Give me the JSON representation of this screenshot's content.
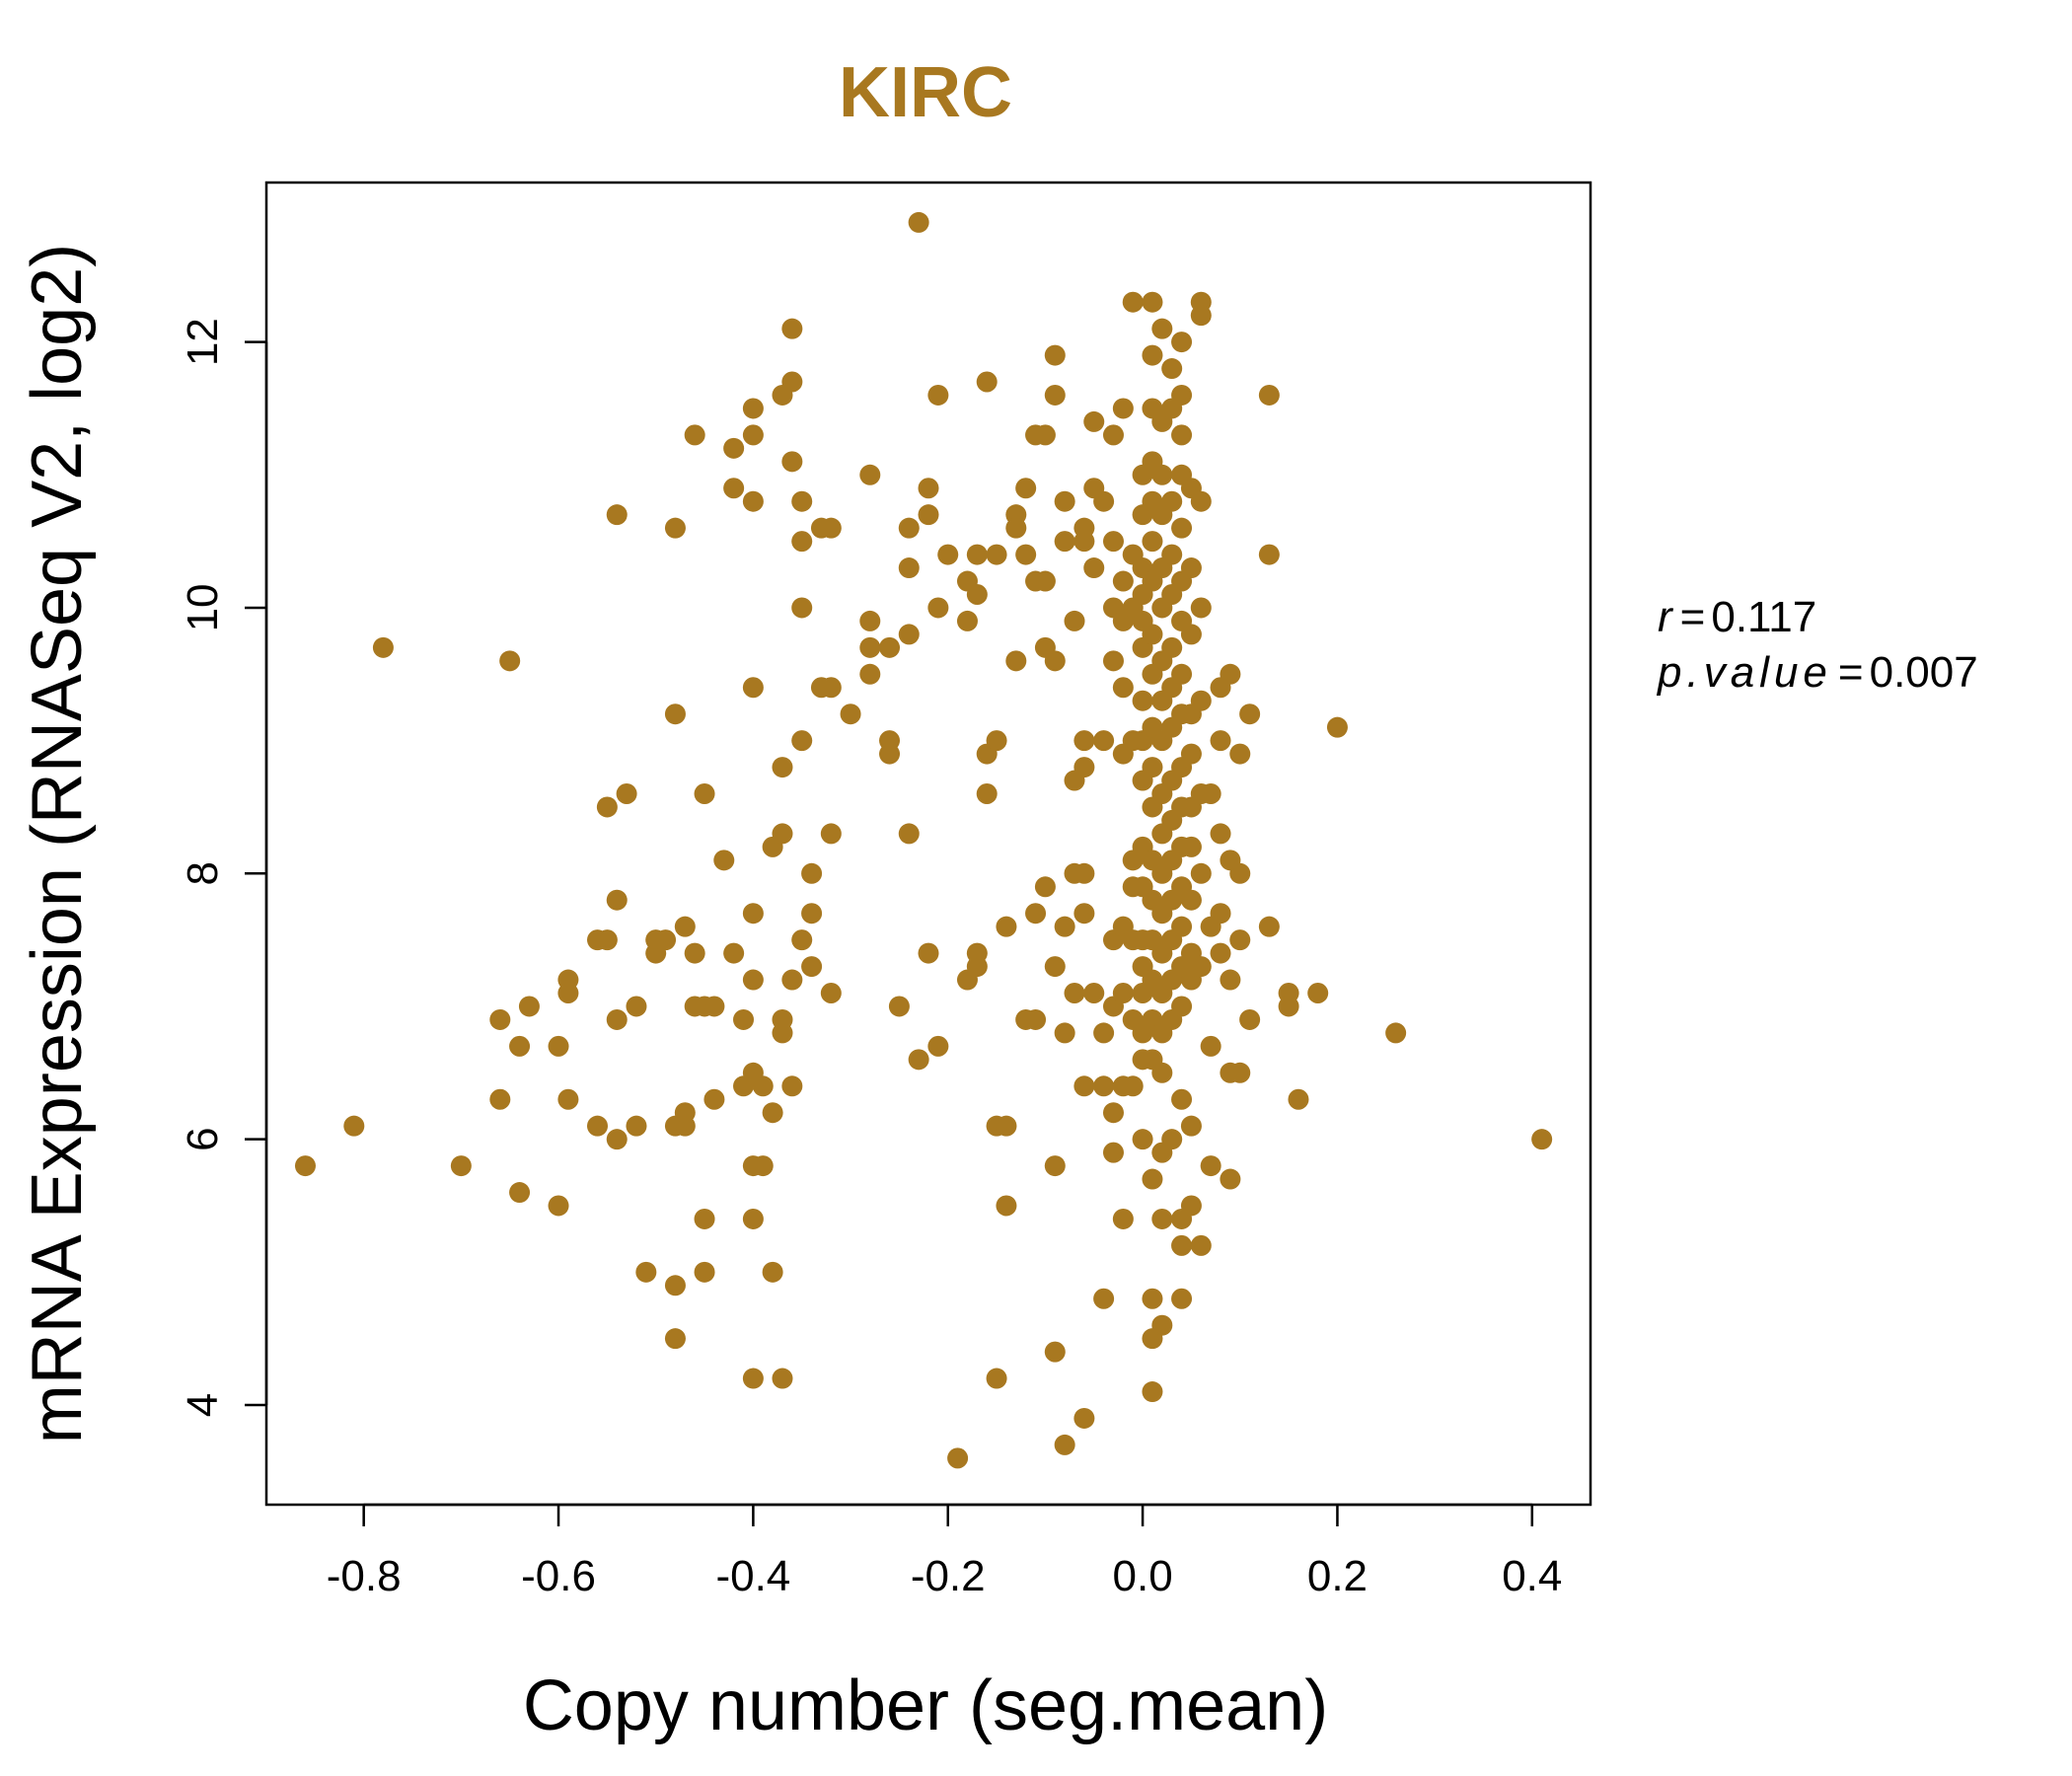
{
  "chart_data": {
    "type": "scatter",
    "title": "KIRC",
    "xlabel": "Copy number (seg.mean)",
    "ylabel": "mRNA Expression (RNASeq V2, log2)",
    "xlim": [
      -0.9,
      0.46
    ],
    "ylim": [
      3.25,
      13.2
    ],
    "x_ticks": [
      -0.8,
      -0.6,
      -0.4,
      -0.2,
      0.0,
      0.2,
      0.4
    ],
    "x_tick_labels": [
      "-0.8",
      "-0.6",
      "-0.4",
      "-0.2",
      "0.0",
      "0.2",
      "0.4"
    ],
    "y_ticks": [
      4,
      6,
      8,
      10,
      12
    ],
    "y_tick_labels": [
      "4",
      "6",
      "8",
      "10",
      "12"
    ],
    "point_color": "#A87820",
    "title_color": "#A87820",
    "stats": {
      "r_symbol": "r",
      "r_value": "0.117",
      "p_symbol": "p.value",
      "p_value": "0.007",
      "equals": "="
    },
    "points": [
      [
        -0.86,
        5.8
      ],
      [
        -0.81,
        6.1
      ],
      [
        -0.78,
        9.7
      ],
      [
        -0.7,
        5.8
      ],
      [
        -0.66,
        6.9
      ],
      [
        -0.66,
        6.3
      ],
      [
        -0.65,
        9.6
      ],
      [
        -0.64,
        6.7
      ],
      [
        -0.64,
        5.6
      ],
      [
        -0.63,
        7.0
      ],
      [
        -0.6,
        6.7
      ],
      [
        -0.6,
        5.5
      ],
      [
        -0.59,
        7.2
      ],
      [
        -0.59,
        7.1
      ],
      [
        -0.59,
        6.3
      ],
      [
        -0.56,
        7.5
      ],
      [
        -0.56,
        6.1
      ],
      [
        -0.55,
        8.5
      ],
      [
        -0.55,
        7.5
      ],
      [
        -0.54,
        6.9
      ],
      [
        -0.54,
        6.0
      ],
      [
        -0.54,
        10.7
      ],
      [
        -0.54,
        7.8
      ],
      [
        -0.53,
        8.6
      ],
      [
        -0.52,
        7.0
      ],
      [
        -0.52,
        6.1
      ],
      [
        -0.51,
        5.0
      ],
      [
        -0.5,
        7.4
      ],
      [
        -0.5,
        7.5
      ],
      [
        -0.49,
        7.5
      ],
      [
        -0.48,
        10.6
      ],
      [
        -0.48,
        9.2
      ],
      [
        -0.48,
        6.1
      ],
      [
        -0.48,
        4.9
      ],
      [
        -0.48,
        4.5
      ],
      [
        -0.47,
        7.6
      ],
      [
        -0.47,
        6.1
      ],
      [
        -0.47,
        6.2
      ],
      [
        -0.46,
        11.3
      ],
      [
        -0.46,
        7.4
      ],
      [
        -0.46,
        7.0
      ],
      [
        -0.45,
        8.6
      ],
      [
        -0.45,
        7.0
      ],
      [
        -0.45,
        5.4
      ],
      [
        -0.45,
        5.0
      ],
      [
        -0.44,
        7.0
      ],
      [
        -0.44,
        6.3
      ],
      [
        -0.43,
        8.1
      ],
      [
        -0.42,
        11.2
      ],
      [
        -0.42,
        7.4
      ],
      [
        -0.42,
        10.9
      ],
      [
        -0.41,
        6.4
      ],
      [
        -0.41,
        6.9
      ],
      [
        -0.4,
        9.4
      ],
      [
        -0.4,
        7.7
      ],
      [
        -0.4,
        5.8
      ],
      [
        -0.4,
        11.5
      ],
      [
        -0.4,
        11.3
      ],
      [
        -0.4,
        10.8
      ],
      [
        -0.4,
        7.2
      ],
      [
        -0.4,
        6.5
      ],
      [
        -0.4,
        5.4
      ],
      [
        -0.4,
        4.2
      ],
      [
        -0.39,
        5.8
      ],
      [
        -0.39,
        6.4
      ],
      [
        -0.38,
        6.2
      ],
      [
        -0.38,
        5.0
      ],
      [
        -0.38,
        8.2
      ],
      [
        -0.37,
        11.6
      ],
      [
        -0.37,
        8.3
      ],
      [
        -0.37,
        8.8
      ],
      [
        -0.37,
        6.9
      ],
      [
        -0.37,
        6.8
      ],
      [
        -0.37,
        4.2
      ],
      [
        -0.36,
        12.1
      ],
      [
        -0.36,
        11.7
      ],
      [
        -0.36,
        11.1
      ],
      [
        -0.36,
        7.2
      ],
      [
        -0.36,
        6.4
      ],
      [
        -0.35,
        10.8
      ],
      [
        -0.35,
        10.5
      ],
      [
        -0.35,
        10.0
      ],
      [
        -0.35,
        9.0
      ],
      [
        -0.35,
        7.5
      ],
      [
        -0.34,
        8.0
      ],
      [
        -0.34,
        7.7
      ],
      [
        -0.34,
        7.3
      ],
      [
        -0.33,
        10.6
      ],
      [
        -0.33,
        9.4
      ],
      [
        -0.32,
        10.6
      ],
      [
        -0.32,
        9.4
      ],
      [
        -0.32,
        8.3
      ],
      [
        -0.32,
        7.1
      ],
      [
        -0.3,
        9.2
      ],
      [
        -0.28,
        11.0
      ],
      [
        -0.28,
        9.9
      ],
      [
        -0.28,
        9.7
      ],
      [
        -0.28,
        9.5
      ],
      [
        -0.26,
        9.7
      ],
      [
        -0.26,
        9.0
      ],
      [
        -0.26,
        8.9
      ],
      [
        -0.25,
        7.0
      ],
      [
        -0.24,
        10.3
      ],
      [
        -0.24,
        10.6
      ],
      [
        -0.24,
        9.8
      ],
      [
        -0.24,
        8.3
      ],
      [
        -0.23,
        12.9
      ],
      [
        -0.23,
        6.6
      ],
      [
        -0.22,
        10.9
      ],
      [
        -0.22,
        7.4
      ],
      [
        -0.22,
        10.7
      ],
      [
        -0.21,
        11.6
      ],
      [
        -0.21,
        10.0
      ],
      [
        -0.21,
        6.7
      ],
      [
        -0.2,
        10.4
      ],
      [
        -0.19,
        3.6
      ],
      [
        -0.18,
        10.2
      ],
      [
        -0.18,
        9.9
      ],
      [
        -0.18,
        7.2
      ],
      [
        -0.17,
        10.4
      ],
      [
        -0.17,
        10.1
      ],
      [
        -0.17,
        7.4
      ],
      [
        -0.17,
        7.3
      ],
      [
        -0.16,
        11.7
      ],
      [
        -0.16,
        8.9
      ],
      [
        -0.16,
        8.6
      ],
      [
        -0.15,
        10.4
      ],
      [
        -0.15,
        9.0
      ],
      [
        -0.15,
        6.1
      ],
      [
        -0.15,
        4.2
      ],
      [
        -0.14,
        7.6
      ],
      [
        -0.14,
        6.1
      ],
      [
        -0.14,
        5.5
      ],
      [
        -0.13,
        10.7
      ],
      [
        -0.13,
        10.6
      ],
      [
        -0.13,
        9.6
      ],
      [
        -0.12,
        10.9
      ],
      [
        -0.12,
        10.4
      ],
      [
        -0.12,
        6.9
      ],
      [
        -0.11,
        11.3
      ],
      [
        -0.11,
        10.2
      ],
      [
        -0.11,
        7.7
      ],
      [
        -0.11,
        6.9
      ],
      [
        -0.1,
        11.3
      ],
      [
        -0.1,
        10.2
      ],
      [
        -0.1,
        7.9
      ],
      [
        -0.1,
        9.7
      ],
      [
        -0.09,
        11.9
      ],
      [
        -0.09,
        11.6
      ],
      [
        -0.09,
        9.6
      ],
      [
        -0.09,
        7.3
      ],
      [
        -0.09,
        4.4
      ],
      [
        -0.09,
        5.8
      ],
      [
        -0.08,
        10.8
      ],
      [
        -0.08,
        10.5
      ],
      [
        -0.08,
        7.6
      ],
      [
        -0.08,
        3.7
      ],
      [
        -0.08,
        6.8
      ],
      [
        -0.07,
        9.9
      ],
      [
        -0.07,
        8.0
      ],
      [
        -0.07,
        8.7
      ],
      [
        -0.07,
        7.1
      ],
      [
        -0.06,
        10.6
      ],
      [
        -0.06,
        10.5
      ],
      [
        -0.06,
        9.0
      ],
      [
        -0.06,
        8.8
      ],
      [
        -0.06,
        8.0
      ],
      [
        -0.06,
        7.7
      ],
      [
        -0.06,
        6.4
      ],
      [
        -0.06,
        3.9
      ],
      [
        -0.05,
        11.4
      ],
      [
        -0.05,
        10.9
      ],
      [
        -0.05,
        10.3
      ],
      [
        -0.05,
        7.1
      ],
      [
        -0.04,
        10.8
      ],
      [
        -0.04,
        9.0
      ],
      [
        -0.04,
        6.8
      ],
      [
        -0.04,
        6.4
      ],
      [
        -0.04,
        4.8
      ],
      [
        -0.03,
        11.3
      ],
      [
        -0.03,
        10.5
      ],
      [
        -0.03,
        10.0
      ],
      [
        -0.03,
        9.6
      ],
      [
        -0.03,
        7.5
      ],
      [
        -0.03,
        7.0
      ],
      [
        -0.03,
        6.2
      ],
      [
        -0.03,
        5.9
      ],
      [
        -0.02,
        11.5
      ],
      [
        -0.02,
        10.2
      ],
      [
        -0.02,
        9.9
      ],
      [
        -0.02,
        9.4
      ],
      [
        -0.02,
        8.9
      ],
      [
        -0.02,
        7.6
      ],
      [
        -0.02,
        7.1
      ],
      [
        -0.02,
        6.4
      ],
      [
        -0.02,
        5.4
      ],
      [
        -0.01,
        12.3
      ],
      [
        -0.01,
        10.4
      ],
      [
        -0.01,
        10.0
      ],
      [
        -0.01,
        9.0
      ],
      [
        -0.01,
        8.1
      ],
      [
        -0.01,
        7.9
      ],
      [
        -0.01,
        7.5
      ],
      [
        -0.01,
        6.9
      ],
      [
        -0.01,
        6.4
      ],
      [
        0.0,
        11.0
      ],
      [
        0.0,
        10.7
      ],
      [
        0.0,
        10.3
      ],
      [
        0.0,
        10.1
      ],
      [
        0.0,
        9.9
      ],
      [
        0.0,
        9.7
      ],
      [
        0.0,
        9.3
      ],
      [
        0.0,
        9.0
      ],
      [
        0.0,
        8.7
      ],
      [
        0.0,
        8.2
      ],
      [
        0.0,
        7.9
      ],
      [
        0.0,
        7.5
      ],
      [
        0.0,
        7.3
      ],
      [
        0.0,
        7.1
      ],
      [
        0.0,
        6.8
      ],
      [
        0.0,
        6.6
      ],
      [
        0.0,
        6.0
      ],
      [
        0.01,
        12.3
      ],
      [
        0.01,
        11.9
      ],
      [
        0.01,
        11.5
      ],
      [
        0.01,
        11.1
      ],
      [
        0.01,
        10.8
      ],
      [
        0.01,
        10.5
      ],
      [
        0.01,
        10.2
      ],
      [
        0.01,
        9.8
      ],
      [
        0.01,
        9.5
      ],
      [
        0.01,
        9.1
      ],
      [
        0.01,
        8.8
      ],
      [
        0.01,
        8.5
      ],
      [
        0.01,
        8.1
      ],
      [
        0.01,
        7.8
      ],
      [
        0.01,
        7.5
      ],
      [
        0.01,
        7.2
      ],
      [
        0.01,
        6.9
      ],
      [
        0.01,
        6.6
      ],
      [
        0.01,
        5.7
      ],
      [
        0.01,
        4.8
      ],
      [
        0.01,
        4.5
      ],
      [
        0.01,
        4.1
      ],
      [
        0.02,
        12.1
      ],
      [
        0.02,
        11.4
      ],
      [
        0.02,
        11.0
      ],
      [
        0.02,
        10.7
      ],
      [
        0.02,
        10.3
      ],
      [
        0.02,
        10.0
      ],
      [
        0.02,
        9.6
      ],
      [
        0.02,
        9.3
      ],
      [
        0.02,
        9.0
      ],
      [
        0.02,
        8.6
      ],
      [
        0.02,
        8.3
      ],
      [
        0.02,
        8.0
      ],
      [
        0.02,
        7.7
      ],
      [
        0.02,
        7.4
      ],
      [
        0.02,
        7.1
      ],
      [
        0.02,
        6.8
      ],
      [
        0.02,
        6.5
      ],
      [
        0.02,
        5.9
      ],
      [
        0.02,
        5.4
      ],
      [
        0.02,
        4.6
      ],
      [
        0.03,
        11.8
      ],
      [
        0.03,
        11.5
      ],
      [
        0.03,
        10.8
      ],
      [
        0.03,
        10.4
      ],
      [
        0.03,
        10.1
      ],
      [
        0.03,
        9.7
      ],
      [
        0.03,
        9.4
      ],
      [
        0.03,
        9.1
      ],
      [
        0.03,
        8.7
      ],
      [
        0.03,
        8.4
      ],
      [
        0.03,
        8.1
      ],
      [
        0.03,
        7.8
      ],
      [
        0.03,
        7.5
      ],
      [
        0.03,
        7.2
      ],
      [
        0.03,
        6.9
      ],
      [
        0.03,
        6.0
      ],
      [
        0.04,
        12.0
      ],
      [
        0.04,
        11.6
      ],
      [
        0.04,
        11.3
      ],
      [
        0.04,
        11.0
      ],
      [
        0.04,
        10.6
      ],
      [
        0.04,
        10.2
      ],
      [
        0.04,
        9.9
      ],
      [
        0.04,
        9.5
      ],
      [
        0.04,
        9.2
      ],
      [
        0.04,
        8.8
      ],
      [
        0.04,
        8.5
      ],
      [
        0.04,
        8.2
      ],
      [
        0.04,
        7.9
      ],
      [
        0.04,
        7.6
      ],
      [
        0.04,
        7.3
      ],
      [
        0.04,
        7.0
      ],
      [
        0.04,
        6.3
      ],
      [
        0.04,
        5.4
      ],
      [
        0.04,
        5.2
      ],
      [
        0.04,
        4.8
      ],
      [
        0.05,
        10.9
      ],
      [
        0.05,
        10.3
      ],
      [
        0.05,
        9.8
      ],
      [
        0.05,
        9.2
      ],
      [
        0.05,
        8.9
      ],
      [
        0.05,
        8.5
      ],
      [
        0.05,
        8.2
      ],
      [
        0.05,
        7.8
      ],
      [
        0.05,
        7.4
      ],
      [
        0.05,
        7.2
      ],
      [
        0.05,
        6.1
      ],
      [
        0.05,
        5.5
      ],
      [
        0.06,
        12.3
      ],
      [
        0.06,
        12.2
      ],
      [
        0.06,
        10.8
      ],
      [
        0.06,
        10.0
      ],
      [
        0.06,
        9.3
      ],
      [
        0.06,
        8.6
      ],
      [
        0.06,
        8.0
      ],
      [
        0.06,
        7.3
      ],
      [
        0.06,
        5.2
      ],
      [
        0.07,
        8.6
      ],
      [
        0.07,
        7.6
      ],
      [
        0.07,
        6.7
      ],
      [
        0.07,
        5.8
      ],
      [
        0.08,
        9.4
      ],
      [
        0.08,
        9.0
      ],
      [
        0.08,
        8.3
      ],
      [
        0.08,
        7.7
      ],
      [
        0.08,
        7.4
      ],
      [
        0.09,
        9.5
      ],
      [
        0.09,
        8.1
      ],
      [
        0.09,
        7.2
      ],
      [
        0.09,
        6.5
      ],
      [
        0.09,
        5.7
      ],
      [
        0.1,
        8.9
      ],
      [
        0.1,
        8.0
      ],
      [
        0.1,
        7.5
      ],
      [
        0.1,
        6.5
      ],
      [
        0.11,
        9.2
      ],
      [
        0.11,
        6.9
      ],
      [
        0.13,
        7.6
      ],
      [
        0.13,
        11.6
      ],
      [
        0.13,
        10.4
      ],
      [
        0.15,
        7.1
      ],
      [
        0.15,
        7.0
      ],
      [
        0.16,
        6.3
      ],
      [
        0.18,
        7.1
      ],
      [
        0.2,
        9.1
      ],
      [
        0.26,
        6.8
      ],
      [
        0.41,
        6.0
      ]
    ]
  }
}
